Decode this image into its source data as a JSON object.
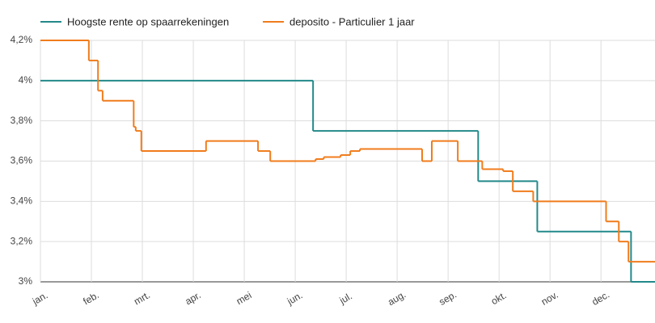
{
  "chart_data": {
    "type": "line",
    "step": "post",
    "xlim": [
      0,
      12.06
    ],
    "ylim": [
      3,
      4.2
    ],
    "xticks": [
      {
        "value": 0,
        "label": "jan."
      },
      {
        "value": 1,
        "label": "feb."
      },
      {
        "value": 2,
        "label": "mrt."
      },
      {
        "value": 3,
        "label": "apr."
      },
      {
        "value": 4,
        "label": "mei"
      },
      {
        "value": 5,
        "label": "jun."
      },
      {
        "value": 6,
        "label": "jul."
      },
      {
        "value": 7,
        "label": "aug."
      },
      {
        "value": 8,
        "label": "sep."
      },
      {
        "value": 9,
        "label": "okt."
      },
      {
        "value": 10,
        "label": "nov."
      },
      {
        "value": 11,
        "label": "dec."
      }
    ],
    "yticks": [
      {
        "value": 3,
        "label": "3%"
      },
      {
        "value": 3.2,
        "label": "3,2%"
      },
      {
        "value": 3.4,
        "label": "3,4%"
      },
      {
        "value": 3.6,
        "label": "3,6%"
      },
      {
        "value": 3.8,
        "label": "3,8%"
      },
      {
        "value": 4,
        "label": "4%"
      },
      {
        "value": 4.2,
        "label": "4,2%"
      }
    ],
    "grid": true,
    "series": [
      {
        "name": "Hoogste rente op spaarrekeningen",
        "color": "#23898a",
        "x": [
          0,
          5.35,
          8.59,
          9.75,
          11.59
        ],
        "values": [
          4,
          3.75,
          3.5,
          3.25,
          3
        ]
      },
      {
        "name": "deposito - Particulier 1 jaar",
        "color": "#f07c1c",
        "x": [
          0,
          0.95,
          1.13,
          1.22,
          1.83,
          1.87,
          1.98,
          3.25,
          4.27,
          4.51,
          5.4,
          5.56,
          5.89,
          6.08,
          6.27,
          7.49,
          7.68,
          8.19,
          8.67,
          9.08,
          9.27,
          9.67,
          11.1,
          11.35,
          11.54
        ],
        "values": [
          4.2,
          4.1,
          3.95,
          3.9,
          3.77,
          3.75,
          3.65,
          3.7,
          3.65,
          3.6,
          3.61,
          3.62,
          3.63,
          3.65,
          3.66,
          3.6,
          3.7,
          3.6,
          3.56,
          3.55,
          3.45,
          3.4,
          3.3,
          3.2,
          3.1
        ]
      }
    ]
  }
}
